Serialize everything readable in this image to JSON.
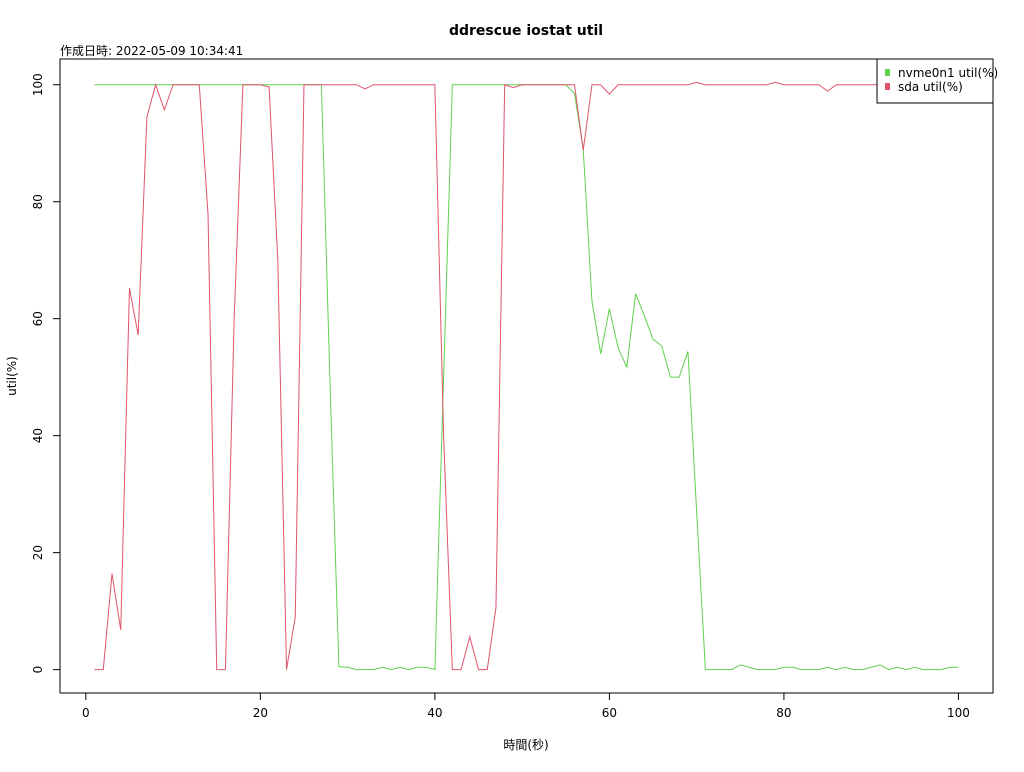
{
  "chart_data": {
    "type": "line",
    "title": "ddrescue iostat util",
    "subtitle": "作成日時: 2022-05-09 10:34:41",
    "x_label": "時間(秒)",
    "y_label": "util(%)",
    "x": [
      1,
      2,
      3,
      4,
      5,
      6,
      7,
      8,
      9,
      10,
      11,
      12,
      13,
      14,
      15,
      16,
      17,
      18,
      19,
      20,
      21,
      22,
      23,
      24,
      25,
      26,
      27,
      28,
      29,
      30,
      31,
      32,
      33,
      34,
      35,
      36,
      37,
      38,
      39,
      40,
      41,
      42,
      43,
      44,
      45,
      46,
      47,
      48,
      49,
      50,
      51,
      52,
      53,
      54,
      55,
      56,
      57,
      58,
      59,
      60,
      61,
      62,
      63,
      64,
      65,
      66,
      67,
      68,
      69,
      70,
      71,
      72,
      73,
      74,
      75,
      76,
      77,
      78,
      79,
      80,
      81,
      82,
      83,
      84,
      85,
      86,
      87,
      88,
      89,
      90,
      91,
      92,
      93,
      94,
      95,
      96,
      97,
      98,
      99,
      100
    ],
    "series": [
      {
        "name": "nvme0n1 util(%)",
        "color": "#61D04F",
        "values": [
          100,
          100,
          100,
          100,
          100,
          100,
          100,
          100,
          100,
          100,
          100,
          100,
          100,
          100,
          100,
          100,
          100,
          100,
          100,
          100,
          100,
          100,
          100,
          100,
          100,
          100,
          100,
          48,
          0.5,
          0.4,
          0,
          0,
          0,
          0.4,
          0,
          0.4,
          0,
          0.4,
          0.4,
          0,
          50,
          100,
          100,
          100,
          100,
          100,
          100,
          100,
          100,
          100,
          100,
          100,
          100,
          100,
          100,
          98.5,
          89,
          63,
          54,
          61.7,
          55,
          51.7,
          64.3,
          60.5,
          56.5,
          55.3,
          50,
          50,
          54.4,
          27,
          0,
          0,
          0,
          0,
          0.8,
          0.4,
          0,
          0,
          0,
          0.4,
          0.4,
          0,
          0,
          0,
          0.4,
          0,
          0.4,
          0,
          0,
          0.4,
          0.8,
          0,
          0.4,
          0,
          0.4,
          0,
          0,
          0,
          0.4,
          0.4
        ]
      },
      {
        "name": "sda util(%)",
        "color": "#DF536B",
        "values": [
          0,
          0,
          16.4,
          6.8,
          65.2,
          57.2,
          94.5,
          100,
          95.7,
          100,
          100,
          100,
          100,
          78,
          0,
          0,
          60,
          100,
          100,
          100,
          99.6,
          70,
          0,
          9,
          100,
          100,
          100,
          100,
          100,
          100,
          100,
          99.3,
          100,
          100,
          100,
          100,
          100,
          100,
          100,
          100,
          40,
          0,
          0,
          5.6,
          0,
          0,
          10.6,
          100,
          99.5,
          100,
          100,
          100,
          100,
          100,
          100,
          100,
          88.8,
          100,
          100,
          98.4,
          100,
          100,
          100,
          100,
          100,
          100,
          100,
          100,
          100,
          100.4,
          100,
          100,
          100,
          100,
          100,
          100,
          100,
          100,
          100.4,
          100,
          100,
          100,
          100,
          100,
          98.9,
          100,
          100,
          100,
          100,
          100,
          100,
          100.4,
          100,
          100,
          100,
          100,
          100,
          100,
          100,
          100
        ]
      }
    ],
    "xlim": [
      -2.96,
      103.96
    ],
    "ylim": [
      -4,
      104.4
    ],
    "xticks": [
      0,
      20,
      40,
      60,
      80,
      100
    ],
    "yticks": [
      0,
      20,
      40,
      60,
      80,
      100
    ],
    "legend": "topright"
  }
}
